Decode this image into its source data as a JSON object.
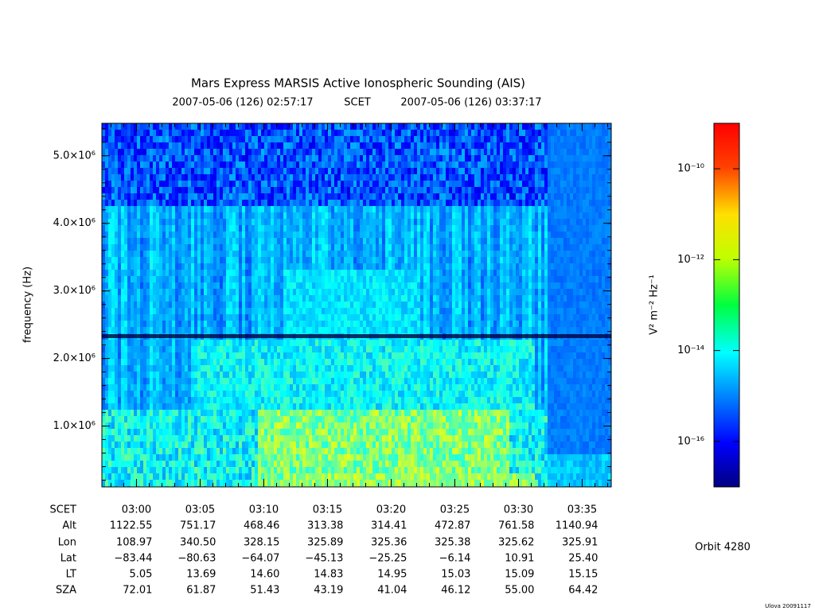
{
  "chart_data": {
    "type": "spectrogram",
    "title": "Mars Express MARSIS Active Ionospheric Sounding (AIS)",
    "subtitle": [
      "2007-05-06 (126) 02:57:17",
      "SCET",
      "2007-05-06 (126) 03:37:17"
    ],
    "y_label": "frequency (Hz)",
    "xlim": [
      177.2833,
      217.2833
    ],
    "xticks": [
      {
        "value": 180,
        "label": "03:00"
      },
      {
        "value": 185,
        "label": "03:05"
      },
      {
        "value": 190,
        "label": "03:10"
      },
      {
        "value": 195,
        "label": "03:15"
      },
      {
        "value": 200,
        "label": "03:20"
      },
      {
        "value": 205,
        "label": "03:25"
      },
      {
        "value": 210,
        "label": "03:30"
      },
      {
        "value": 215,
        "label": "03:35"
      }
    ],
    "ylim": [
      100000,
      5480000
    ],
    "yticks": [
      {
        "value": 1000000,
        "label": "1.0×10⁶"
      },
      {
        "value": 2000000,
        "label": "2.0×10⁶"
      },
      {
        "value": 3000000,
        "label": "3.0×10⁶"
      },
      {
        "value": 4000000,
        "label": "4.0×10⁶"
      },
      {
        "value": 5000000,
        "label": "5.0×10⁶"
      }
    ],
    "colorbar": {
      "label": "V² m⁻² Hz⁻¹",
      "log": true,
      "zlim": [
        1e-17,
        1e-09
      ],
      "ticks": [
        {
          "value": 1e-10,
          "label": "10⁻¹⁰"
        },
        {
          "value": 1e-12,
          "label": "10⁻¹²"
        },
        {
          "value": 1e-14,
          "label": "10⁻¹⁴"
        },
        {
          "value": 1e-16,
          "label": "10⁻¹⁶"
        }
      ]
    },
    "table": {
      "row_labels": [
        "SCET",
        "Alt",
        "Lon",
        "Lat",
        "LT",
        "SZA"
      ],
      "rows": [
        [
          "1122.55",
          "751.17",
          "468.46",
          "313.38",
          "314.41",
          "472.87",
          "761.58",
          "1140.94"
        ],
        [
          "108.97",
          "340.50",
          "328.15",
          "325.89",
          "325.36",
          "325.38",
          "325.62",
          "325.91"
        ],
        [
          "−83.44",
          "−80.63",
          "−64.07",
          "−45.13",
          "−25.25",
          "−6.14",
          "10.91",
          "25.40"
        ],
        [
          "5.05",
          "13.69",
          "14.60",
          "14.83",
          "14.95",
          "15.03",
          "15.09",
          "15.15"
        ],
        [
          "72.01",
          "61.87",
          "51.43",
          "43.19",
          "41.04",
          "46.12",
          "55.00",
          "64.42"
        ]
      ]
    },
    "annotations": [
      "Orbit 4280",
      "Ulova 20091117"
    ]
  }
}
